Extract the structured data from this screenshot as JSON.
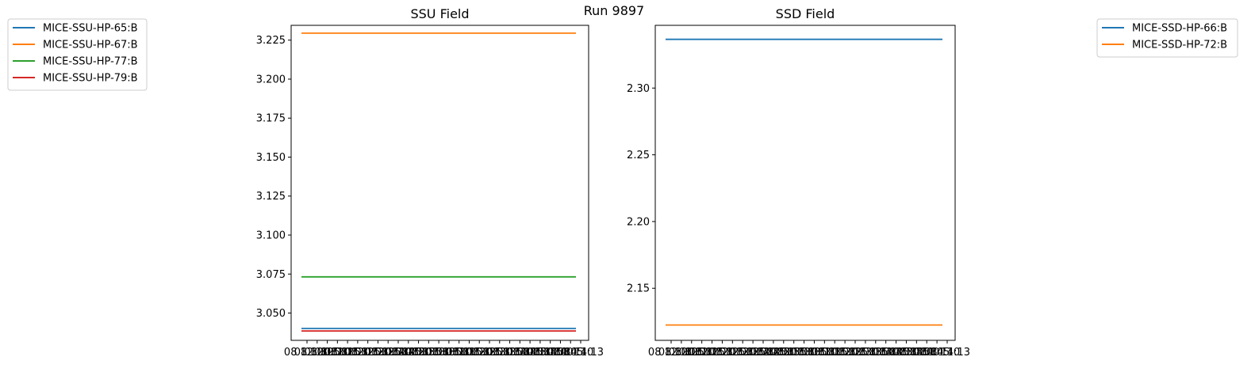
{
  "figure": {
    "suptitle": "Run 9897"
  },
  "chart_data": [
    {
      "type": "line",
      "title": "SSU Field",
      "xlabel": "",
      "ylabel": "",
      "ylim": [
        3.0325,
        3.2345
      ],
      "yticks": [
        "3.050",
        "3.075",
        "3.100",
        "3.125",
        "3.150",
        "3.175",
        "3.200",
        "3.225"
      ],
      "xticks": [
        "08 12:00",
        "08 12:05",
        "08 12:10",
        "08 12:15",
        "08 12:20",
        "08 12:25",
        "08 12:30",
        "08 12:35",
        "08 12:40",
        "08 12:45",
        "08 12:50",
        "08 12:55",
        "08 13:00",
        "08 13:05",
        "08 13:10",
        "08 13:15",
        "08 13:20",
        "08 13:25",
        "08 13:30",
        "08 13:35",
        "08 13:40",
        "08 13:45",
        "08 13:50",
        "08 13:55",
        "08 14:00",
        "08 14:05",
        "08 14:10",
        "08 14:13"
      ],
      "legend_position": "outside-left",
      "series": [
        {
          "name": "MICE-SSU-HP-65:B",
          "color": "#1f77b4",
          "value": 3.0401
        },
        {
          "name": "MICE-SSU-HP-67:B",
          "color": "#ff7f0e",
          "value": 3.2295
        },
        {
          "name": "MICE-SSU-HP-77:B",
          "color": "#2ca02c",
          "value": 3.0732
        },
        {
          "name": "MICE-SSU-HP-79:B",
          "color": "#d62728",
          "value": 3.0385
        }
      ]
    },
    {
      "type": "line",
      "title": "SSD Field",
      "xlabel": "",
      "ylabel": "",
      "ylim": [
        2.111,
        2.347
      ],
      "yticks": [
        "2.15",
        "2.20",
        "2.25",
        "2.30"
      ],
      "xticks": [
        "08 12:00",
        "08 12:05",
        "08 12:10",
        "08 12:15",
        "08 12:20",
        "08 12:25",
        "08 12:30",
        "08 12:35",
        "08 12:40",
        "08 12:45",
        "08 12:50",
        "08 12:55",
        "08 13:00",
        "08 13:05",
        "08 13:10",
        "08 13:15",
        "08 13:20",
        "08 13:25",
        "08 13:30",
        "08 13:35",
        "08 13:40",
        "08 13:45",
        "08 13:50",
        "08 13:55",
        "08 14:00",
        "08 14:05",
        "08 14:10",
        "08 14:13"
      ],
      "legend_position": "outside-right",
      "series": [
        {
          "name": "MICE-SSD-HP-66:B",
          "color": "#1f77b4",
          "value": 2.3365
        },
        {
          "name": "MICE-SSD-HP-72:B",
          "color": "#ff7f0e",
          "value": 2.1225
        }
      ]
    }
  ]
}
